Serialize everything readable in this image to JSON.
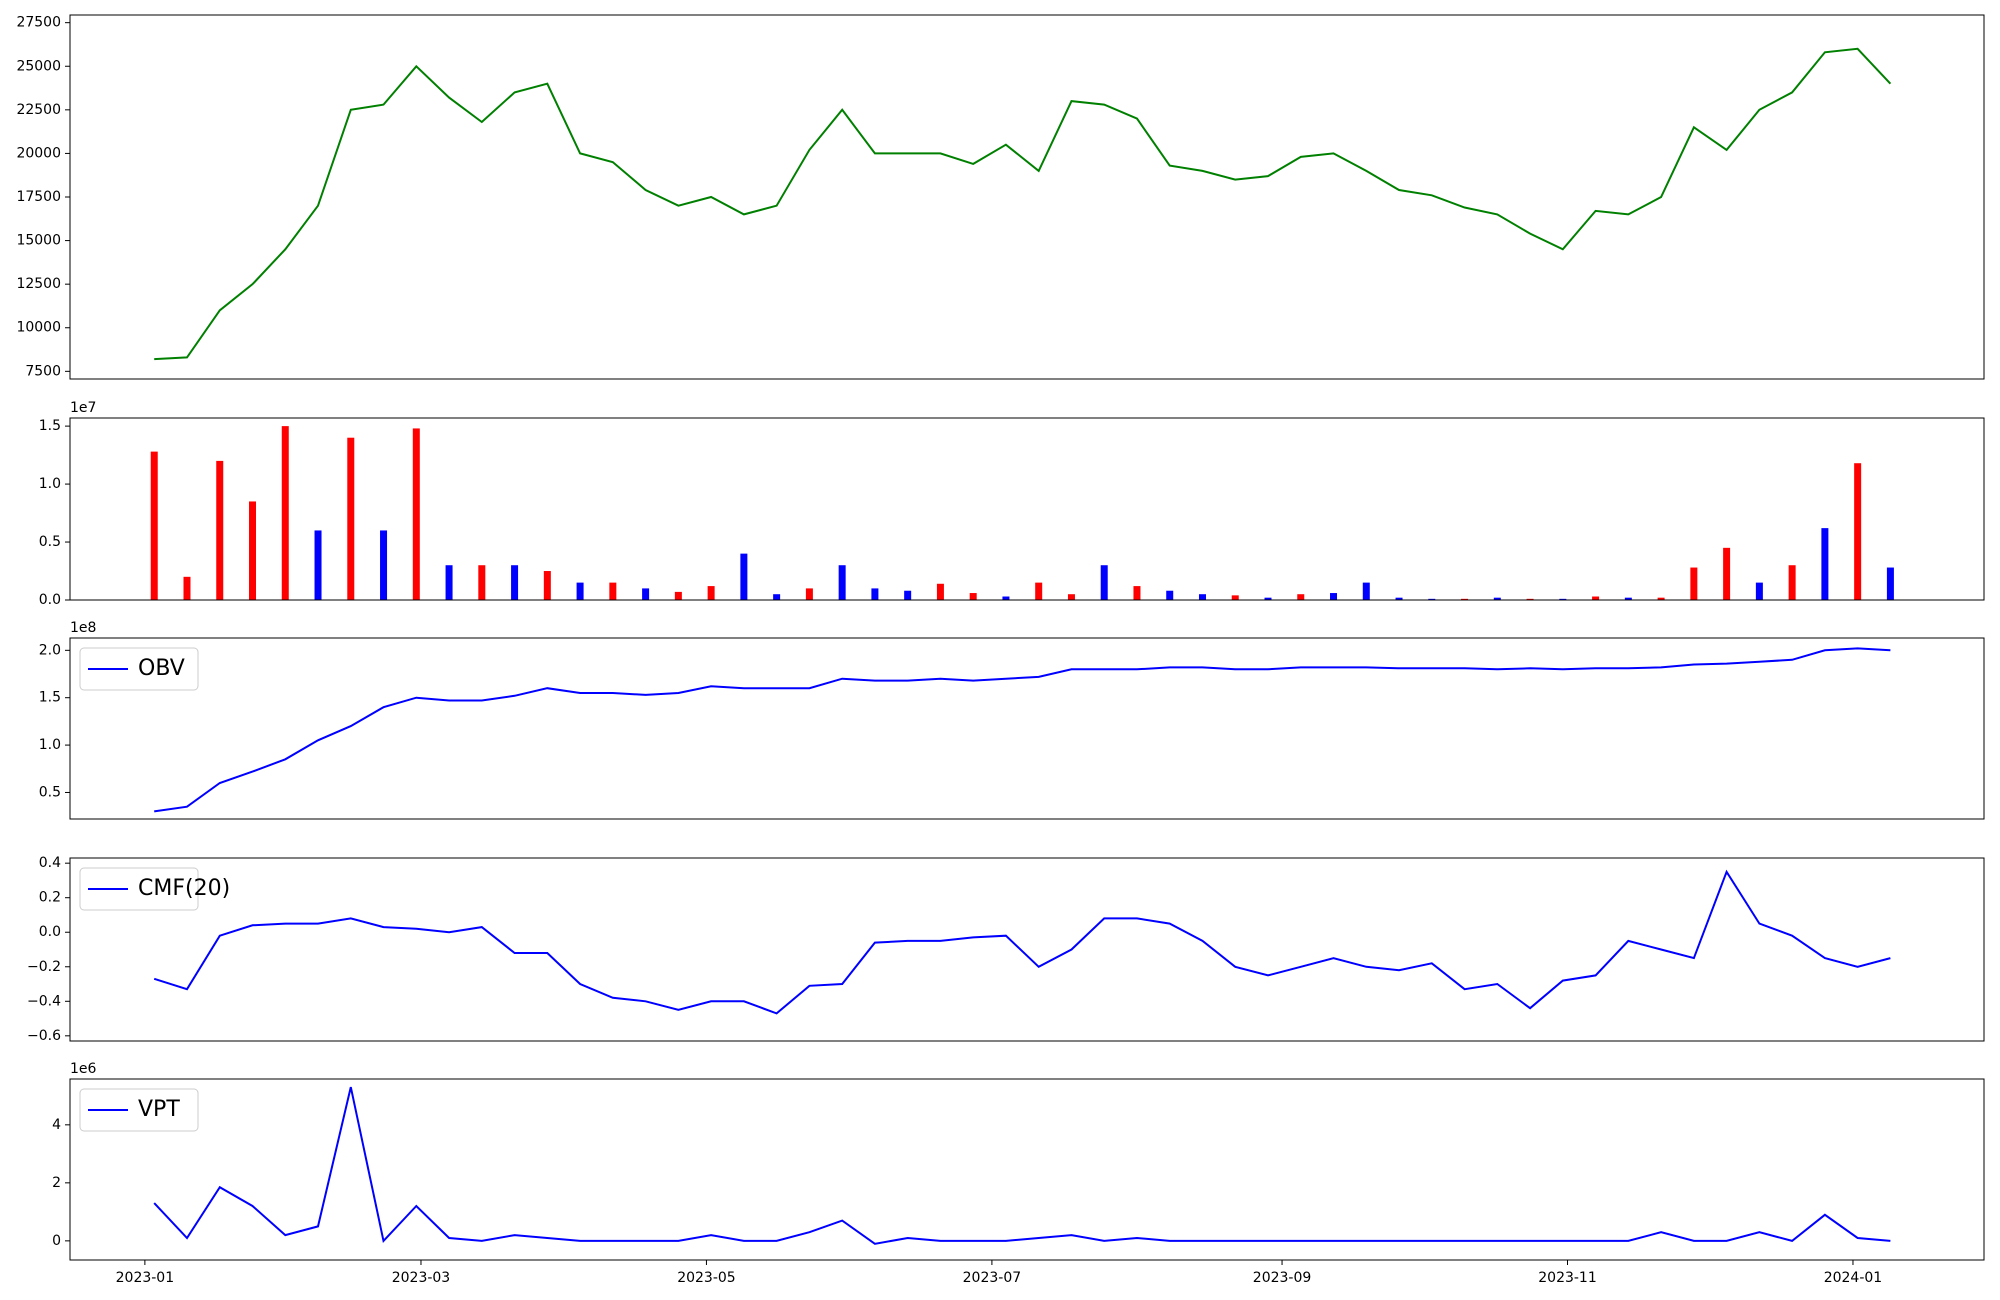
{
  "chart_data": [
    {
      "type": "line",
      "color": "#008000",
      "x": [
        "2023-01-03",
        "2023-01-10",
        "2023-01-17",
        "2023-01-24",
        "2023-01-31",
        "2023-02-07",
        "2023-02-14",
        "2023-02-21",
        "2023-02-28",
        "2023-03-07",
        "2023-03-14",
        "2023-03-21",
        "2023-03-28",
        "2023-04-04",
        "2023-04-11",
        "2023-04-18",
        "2023-04-25",
        "2023-05-02",
        "2023-05-09",
        "2023-05-16",
        "2023-05-23",
        "2023-05-30",
        "2023-06-06",
        "2023-06-13",
        "2023-06-20",
        "2023-06-27",
        "2023-07-04",
        "2023-07-11",
        "2023-07-18",
        "2023-07-25",
        "2023-08-01",
        "2023-08-08",
        "2023-08-15",
        "2023-08-22",
        "2023-08-29",
        "2023-09-05",
        "2023-09-12",
        "2023-09-19",
        "2023-09-26",
        "2023-10-03",
        "2023-10-10",
        "2023-10-17",
        "2023-10-24",
        "2023-10-31",
        "2023-11-07",
        "2023-11-14",
        "2023-11-21",
        "2023-11-28",
        "2023-12-05",
        "2023-12-12",
        "2023-12-19",
        "2023-12-26",
        "2024-01-02",
        "2024-01-09"
      ],
      "values": [
        8200,
        8300,
        11000,
        12500,
        14500,
        17000,
        22500,
        22800,
        25000,
        23200,
        21800,
        23500,
        24000,
        20000,
        19500,
        17900,
        17000,
        17500,
        16500,
        17000,
        20200,
        22500,
        20000,
        20000,
        20000,
        19400,
        20500,
        19000,
        23000,
        22800,
        22000,
        19300,
        19000,
        18500,
        18700,
        19800,
        20000,
        19000,
        17900,
        17600,
        16900,
        16500,
        15400,
        14500,
        16700,
        16500,
        17500,
        21500,
        20200,
        22500,
        23500,
        25800,
        26000,
        24000
      ],
      "xlim": [
        "2022-12-16",
        "2024-01-29"
      ],
      "ylim": [
        7060,
        27940
      ],
      "yticks": [
        7500,
        10000,
        12500,
        15000,
        17500,
        20000,
        22500,
        25000,
        27500
      ]
    },
    {
      "type": "bar",
      "y_offset_label": "1e7",
      "x": [
        "2023-01-03",
        "2023-01-10",
        "2023-01-17",
        "2023-01-24",
        "2023-01-31",
        "2023-02-07",
        "2023-02-14",
        "2023-02-21",
        "2023-02-28",
        "2023-03-07",
        "2023-03-14",
        "2023-03-21",
        "2023-03-28",
        "2023-04-04",
        "2023-04-11",
        "2023-04-18",
        "2023-04-25",
        "2023-05-02",
        "2023-05-09",
        "2023-05-16",
        "2023-05-23",
        "2023-05-30",
        "2023-06-06",
        "2023-06-13",
        "2023-06-20",
        "2023-06-27",
        "2023-07-04",
        "2023-07-11",
        "2023-07-18",
        "2023-07-25",
        "2023-08-01",
        "2023-08-08",
        "2023-08-15",
        "2023-08-22",
        "2023-08-29",
        "2023-09-05",
        "2023-09-12",
        "2023-09-19",
        "2023-09-26",
        "2023-10-03",
        "2023-10-10",
        "2023-10-17",
        "2023-10-24",
        "2023-10-31",
        "2023-11-07",
        "2023-11-14",
        "2023-11-21",
        "2023-11-28",
        "2023-12-05",
        "2023-12-12",
        "2023-12-19",
        "2023-12-26",
        "2024-01-02",
        "2024-01-09"
      ],
      "values": [
        1.28,
        0.2,
        1.2,
        0.85,
        1.5,
        0.6,
        1.4,
        0.6,
        1.48,
        0.3,
        0.3,
        0.3,
        0.25,
        0.15,
        0.15,
        0.1,
        0.07,
        0.12,
        0.4,
        0.05,
        0.1,
        0.3,
        0.1,
        0.08,
        0.14,
        0.06,
        0.03,
        0.15,
        0.05,
        0.3,
        0.12,
        0.08,
        0.05,
        0.04,
        0.02,
        0.05,
        0.06,
        0.15,
        0.02,
        0.01,
        0.01,
        0.02,
        0.01,
        0.01,
        0.03,
        0.02,
        0.02,
        0.28,
        0.45,
        0.15,
        0.3,
        0.62,
        1.18,
        0.28
      ],
      "colors": [
        "red",
        "red",
        "red",
        "red",
        "red",
        "blue",
        "red",
        "blue",
        "red",
        "blue",
        "red",
        "blue",
        "red",
        "blue",
        "red",
        "blue",
        "red",
        "red",
        "blue",
        "blue",
        "red",
        "blue",
        "blue",
        "blue",
        "red",
        "red",
        "blue",
        "red",
        "red",
        "blue",
        "red",
        "blue",
        "blue",
        "red",
        "blue",
        "red",
        "blue",
        "blue",
        "blue",
        "blue",
        "red",
        "blue",
        "red",
        "blue",
        "red",
        "blue",
        "red",
        "red",
        "red",
        "blue",
        "red",
        "blue",
        "red",
        "blue"
      ],
      "xlim": [
        "2022-12-16",
        "2024-01-29"
      ],
      "ylim": [
        0,
        1.57
      ],
      "yticks": [
        {
          "value": 0,
          "label": "0.0"
        },
        0.5,
        {
          "value": 1,
          "label": "1.0"
        },
        1.5
      ]
    },
    {
      "type": "line",
      "y_offset_label": "1e8",
      "legend": "upper left",
      "x": [
        "2023-01-03",
        "2023-01-10",
        "2023-01-17",
        "2023-01-24",
        "2023-01-31",
        "2023-02-07",
        "2023-02-14",
        "2023-02-21",
        "2023-02-28",
        "2023-03-07",
        "2023-03-14",
        "2023-03-21",
        "2023-03-28",
        "2023-04-04",
        "2023-04-11",
        "2023-04-18",
        "2023-04-25",
        "2023-05-02",
        "2023-05-09",
        "2023-05-16",
        "2023-05-23",
        "2023-05-30",
        "2023-06-06",
        "2023-06-13",
        "2023-06-20",
        "2023-06-27",
        "2023-07-04",
        "2023-07-11",
        "2023-07-18",
        "2023-07-25",
        "2023-08-01",
        "2023-08-08",
        "2023-08-15",
        "2023-08-22",
        "2023-08-29",
        "2023-09-05",
        "2023-09-12",
        "2023-09-19",
        "2023-09-26",
        "2023-10-03",
        "2023-10-10",
        "2023-10-17",
        "2023-10-24",
        "2023-10-31",
        "2023-11-07",
        "2023-11-14",
        "2023-11-21",
        "2023-11-28",
        "2023-12-05",
        "2023-12-12",
        "2023-12-19",
        "2023-12-26",
        "2024-01-02",
        "2024-01-09"
      ],
      "series": [
        {
          "name": "OBV",
          "color": "#0000ff",
          "values": [
            0.3,
            0.35,
            0.6,
            0.72,
            0.85,
            1.05,
            1.2,
            1.4,
            1.5,
            1.47,
            1.47,
            1.52,
            1.6,
            1.55,
            1.55,
            1.53,
            1.55,
            1.62,
            1.6,
            1.6,
            1.6,
            1.7,
            1.68,
            1.68,
            1.7,
            1.68,
            1.7,
            1.72,
            1.8,
            1.8,
            1.8,
            1.82,
            1.82,
            1.8,
            1.8,
            1.82,
            1.82,
            1.82,
            1.81,
            1.81,
            1.81,
            1.8,
            1.81,
            1.8,
            1.81,
            1.81,
            1.82,
            1.85,
            1.86,
            1.88,
            1.9,
            2.0,
            2.02,
            2.0
          ]
        }
      ],
      "xlim": [
        "2022-12-16",
        "2024-01-29"
      ],
      "ylim": [
        0.22,
        2.13
      ],
      "yticks": [
        0.5,
        {
          "value": 1,
          "label": "1.0"
        },
        1.5,
        {
          "value": 2,
          "label": "2.0"
        }
      ]
    },
    {
      "type": "line",
      "legend": "upper left",
      "x": [
        "2023-01-03",
        "2023-01-10",
        "2023-01-17",
        "2023-01-24",
        "2023-01-31",
        "2023-02-07",
        "2023-02-14",
        "2023-02-21",
        "2023-02-28",
        "2023-03-07",
        "2023-03-14",
        "2023-03-21",
        "2023-03-28",
        "2023-04-04",
        "2023-04-11",
        "2023-04-18",
        "2023-04-25",
        "2023-05-02",
        "2023-05-09",
        "2023-05-16",
        "2023-05-23",
        "2023-05-30",
        "2023-06-06",
        "2023-06-13",
        "2023-06-20",
        "2023-06-27",
        "2023-07-04",
        "2023-07-11",
        "2023-07-18",
        "2023-07-25",
        "2023-08-01",
        "2023-08-08",
        "2023-08-15",
        "2023-08-22",
        "2023-08-29",
        "2023-09-05",
        "2023-09-12",
        "2023-09-19",
        "2023-09-26",
        "2023-10-03",
        "2023-10-10",
        "2023-10-17",
        "2023-10-24",
        "2023-10-31",
        "2023-11-07",
        "2023-11-14",
        "2023-11-21",
        "2023-11-28",
        "2023-12-05",
        "2023-12-12",
        "2023-12-19",
        "2023-12-26",
        "2024-01-02",
        "2024-01-09"
      ],
      "series": [
        {
          "name": "CMF(20)",
          "color": "#0000ff",
          "values": [
            -0.27,
            -0.33,
            -0.02,
            0.04,
            0.05,
            0.05,
            0.08,
            0.03,
            0.02,
            0.0,
            0.03,
            -0.12,
            -0.12,
            -0.3,
            -0.38,
            -0.4,
            -0.45,
            -0.4,
            -0.4,
            -0.47,
            -0.31,
            -0.3,
            -0.06,
            -0.05,
            -0.05,
            -0.03,
            -0.02,
            -0.2,
            -0.1,
            0.08,
            0.08,
            0.05,
            -0.05,
            -0.2,
            -0.25,
            -0.2,
            -0.15,
            -0.2,
            -0.22,
            -0.18,
            -0.33,
            -0.3,
            -0.44,
            -0.28,
            -0.25,
            -0.05,
            -0.1,
            -0.15,
            0.35,
            0.05,
            -0.02,
            -0.15,
            -0.2,
            -0.15
          ]
        }
      ],
      "xlim": [
        "2022-12-16",
        "2024-01-29"
      ],
      "ylim": [
        -0.63,
        0.43
      ],
      "yticks": [
        {
          "value": -0.6,
          "label": "−0.6"
        },
        {
          "value": -0.4,
          "label": "−0.4"
        },
        {
          "value": -0.2,
          "label": "−0.2"
        },
        {
          "value": 0,
          "label": "0.0"
        },
        0.2,
        0.4
      ]
    },
    {
      "type": "line",
      "y_offset_label": "1e6",
      "legend": "upper left",
      "x": [
        "2023-01-03",
        "2023-01-10",
        "2023-01-17",
        "2023-01-24",
        "2023-01-31",
        "2023-02-07",
        "2023-02-14",
        "2023-02-21",
        "2023-02-28",
        "2023-03-07",
        "2023-03-14",
        "2023-03-21",
        "2023-03-28",
        "2023-04-04",
        "2023-04-11",
        "2023-04-18",
        "2023-04-25",
        "2023-05-02",
        "2023-05-09",
        "2023-05-16",
        "2023-05-23",
        "2023-05-30",
        "2023-06-06",
        "2023-06-13",
        "2023-06-20",
        "2023-06-27",
        "2023-07-04",
        "2023-07-11",
        "2023-07-18",
        "2023-07-25",
        "2023-08-01",
        "2023-08-08",
        "2023-08-15",
        "2023-08-22",
        "2023-08-29",
        "2023-09-05",
        "2023-09-12",
        "2023-09-19",
        "2023-09-26",
        "2023-10-03",
        "2023-10-10",
        "2023-10-17",
        "2023-10-24",
        "2023-10-31",
        "2023-11-07",
        "2023-11-14",
        "2023-11-21",
        "2023-11-28",
        "2023-12-05",
        "2023-12-12",
        "2023-12-19",
        "2023-12-26",
        "2024-01-02",
        "2024-01-09"
      ],
      "series": [
        {
          "name": "VPT",
          "color": "#0000ff",
          "values": [
            1.3,
            0.1,
            1.85,
            1.2,
            0.2,
            0.5,
            5.3,
            0.0,
            1.2,
            0.1,
            0.0,
            0.2,
            0.1,
            0.0,
            0.0,
            0.0,
            0.0,
            0.2,
            0.0,
            0.0,
            0.3,
            0.7,
            -0.1,
            0.1,
            0.0,
            0.0,
            0.0,
            0.1,
            0.2,
            0.0,
            0.1,
            0.0,
            0.0,
            0.0,
            0.0,
            0.0,
            0.0,
            0.0,
            0.0,
            0.0,
            0.0,
            0.0,
            0.0,
            0.0,
            0.0,
            0.0,
            0.3,
            0.0,
            0.0,
            0.3,
            0.0,
            0.9,
            0.1,
            0.0
          ]
        }
      ],
      "xlim": [
        "2022-12-16",
        "2024-01-29"
      ],
      "ylim": [
        -0.66,
        5.58
      ],
      "yticks": [
        0,
        2,
        4
      ],
      "xticks": [
        {
          "value": "2023-01-01",
          "label": "2023-01"
        },
        {
          "value": "2023-03-01",
          "label": "2023-03"
        },
        {
          "value": "2023-05-01",
          "label": "2023-05"
        },
        {
          "value": "2023-07-01",
          "label": "2023-07"
        },
        {
          "value": "2023-09-01",
          "label": "2023-09"
        },
        {
          "value": "2023-11-01",
          "label": "2023-11"
        },
        {
          "value": "2024-01-01",
          "label": "2024-01"
        }
      ]
    }
  ]
}
